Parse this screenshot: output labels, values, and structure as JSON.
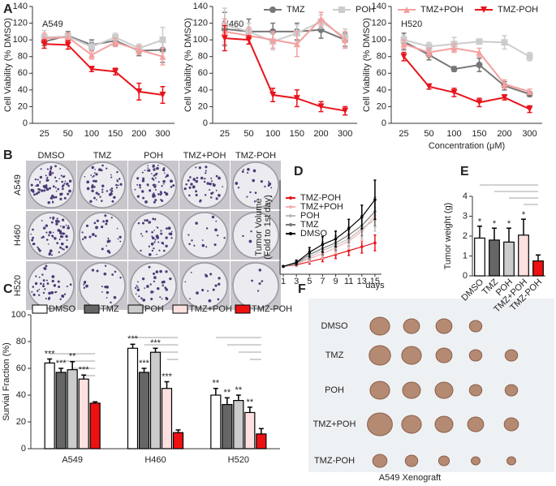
{
  "panel_labels": [
    "A",
    "B",
    "C",
    "D",
    "E",
    "F"
  ],
  "colony_assay": {
    "columns": [
      "DMSO",
      "TMZ",
      "POH",
      "TMZ+POH",
      "TMZ-POH"
    ],
    "rows": [
      "A549",
      "H460",
      "H520"
    ]
  },
  "xenograft": {
    "rows": [
      "DMSO",
      "TMZ",
      "POH",
      "TMZ+POH",
      "TMZ-POH"
    ],
    "caption": "A549 Xenograft"
  },
  "chart_data": [
    {
      "type": "line",
      "title": "A549",
      "ylabel": "Cell Viability (% DMSO)",
      "legend": "top",
      "categories": [
        "25",
        "50",
        "100",
        "150",
        "200",
        "300"
      ],
      "ylim": [
        0,
        140
      ],
      "yticks": [
        0,
        20,
        40,
        60,
        80,
        100,
        120,
        140
      ],
      "series": [
        {
          "name": "TMZ",
          "color": "#777777",
          "marker": "circle",
          "values": [
            98,
            105,
            94,
            99,
            87,
            88
          ],
          "errors": [
            5,
            5,
            6,
            6,
            6,
            15
          ]
        },
        {
          "name": "POH",
          "color": "#cccccc",
          "marker": "square",
          "values": [
            103,
            104,
            92,
            103,
            90,
            100
          ],
          "errors": [
            8,
            4,
            6,
            5,
            5,
            15
          ]
        },
        {
          "name": "TMZ+POH",
          "color": "#f4a0a0",
          "marker": "triangle-up",
          "values": [
            102,
            103,
            82,
            97,
            88,
            80
          ],
          "errors": [
            6,
            5,
            5,
            5,
            5,
            10
          ]
        },
        {
          "name": "TMZ-POH",
          "color": "#e8141c",
          "marker": "triangle-down",
          "values": [
            95,
            94,
            65,
            62,
            38,
            34
          ],
          "errors": [
            5,
            5,
            3,
            4,
            10,
            10
          ]
        }
      ]
    },
    {
      "type": "line",
      "title": "H460",
      "ylabel": "Cell Viability (% DMSO)",
      "categories": [
        "25",
        "50",
        "100",
        "150",
        "200",
        "300"
      ],
      "ylim": [
        0,
        140
      ],
      "yticks": [
        0,
        20,
        40,
        60,
        80,
        100,
        120,
        140
      ],
      "series": [
        {
          "color": "#777777",
          "marker": "circle",
          "values": [
            113,
            110,
            110,
            110,
            112,
            100
          ],
          "errors": [
            20,
            15,
            10,
            10,
            10,
            8
          ]
        },
        {
          "color": "#cccccc",
          "marker": "square",
          "values": [
            118,
            110,
            98,
            108,
            122,
            103
          ],
          "errors": [
            20,
            10,
            10,
            10,
            8,
            10
          ]
        },
        {
          "color": "#f4a0a0",
          "marker": "triangle-up",
          "values": [
            110,
            105,
            100,
            95,
            125,
            100
          ],
          "errors": [
            15,
            10,
            10,
            15,
            8,
            10
          ]
        },
        {
          "color": "#e8141c",
          "marker": "triangle-down",
          "values": [
            102,
            100,
            34,
            30,
            20,
            15
          ],
          "errors": [
            15,
            5,
            8,
            10,
            6,
            5
          ]
        }
      ]
    },
    {
      "type": "line",
      "title": "H520",
      "ylabel": "Cell Viability (% DMSO)",
      "xlabel": "Concentration (μM)",
      "categories": [
        "25",
        "50",
        "100",
        "150",
        "200",
        "300"
      ],
      "ylim": [
        0,
        140
      ],
      "yticks": [
        0,
        20,
        40,
        60,
        80,
        100,
        120,
        140
      ],
      "series": [
        {
          "color": "#777777",
          "marker": "circle",
          "values": [
            98,
            82,
            65,
            70,
            45,
            35
          ],
          "errors": [
            10,
            6,
            3,
            8,
            5,
            3
          ]
        },
        {
          "color": "#cccccc",
          "marker": "square",
          "values": [
            100,
            92,
            95,
            98,
            97,
            80
          ],
          "errors": [
            5,
            5,
            8,
            3,
            8,
            5
          ]
        },
        {
          "color": "#f4a0a0",
          "marker": "triangle-up",
          "values": [
            95,
            85,
            90,
            85,
            47,
            38
          ],
          "errors": [
            5,
            5,
            5,
            5,
            5,
            3
          ]
        },
        {
          "color": "#e8141c",
          "marker": "triangle-down",
          "values": [
            80,
            44,
            37,
            25,
            31,
            17
          ],
          "errors": [
            5,
            3,
            5,
            5,
            3,
            4
          ]
        }
      ]
    },
    {
      "type": "bar",
      "ylabel": "Survial Fraction (%)",
      "legend": "top",
      "categories": [
        "A549",
        "H460",
        "H520"
      ],
      "ylim": [
        0,
        100
      ],
      "yticks": [
        0,
        20,
        40,
        60,
        80,
        100
      ],
      "series": [
        {
          "name": "DMSO",
          "color": "#ffffff",
          "values": [
            64,
            75,
            40
          ],
          "errors": [
            3,
            3,
            5
          ],
          "annotations": [
            "***",
            "***",
            "**"
          ]
        },
        {
          "name": "TMZ",
          "color": "#666666",
          "values": [
            57,
            57,
            33
          ],
          "errors": [
            3,
            3,
            5
          ],
          "annotations": [
            "***",
            "***",
            "**"
          ]
        },
        {
          "name": "POH",
          "color": "#cccccc",
          "values": [
            59,
            72,
            36
          ],
          "errors": [
            6,
            3,
            4
          ],
          "annotations": [
            "**",
            "***",
            "**"
          ]
        },
        {
          "name": "TMZ+POH",
          "color": "#fde0e0",
          "values": [
            52,
            45,
            27
          ],
          "errors": [
            3,
            5,
            4
          ],
          "annotations": [
            "***",
            "***",
            "**"
          ]
        },
        {
          "name": "TMZ-POH",
          "color": "#ee1111",
          "values": [
            34,
            12,
            11
          ],
          "errors": [
            1,
            2,
            4
          ]
        }
      ]
    },
    {
      "type": "line",
      "ylabel": [
        "Tumor Volume",
        "(Fold to 1st day)"
      ],
      "xlabel": "days",
      "legend": "upper left",
      "x": [
        1,
        3,
        5,
        7,
        9,
        11,
        13,
        15
      ],
      "xlim": [
        0.5,
        16
      ],
      "xticks": [
        1,
        3,
        5,
        7,
        9,
        11,
        13,
        15
      ],
      "ylim": [
        0,
        12
      ],
      "series": [
        {
          "name": "TMZ-POH",
          "color": "#e8141c",
          "marker": "circle",
          "values": [
            1,
            1.2,
            1.6,
            2.0,
            2.5,
            3.0,
            3.5,
            4.0
          ],
          "errors": [
            0,
            0.2,
            0.3,
            0.4,
            0.5,
            0.6,
            0.8,
            1.0
          ]
        },
        {
          "name": "TMZ+POH",
          "color": "#f4b0b0",
          "marker": "circle",
          "values": [
            1,
            1.3,
            2.0,
            2.6,
            3.4,
            4.2,
            5.5,
            7.5
          ],
          "errors": [
            0,
            0.3,
            0.5,
            0.6,
            0.8,
            1.0,
            1.2,
            1.5
          ]
        },
        {
          "name": "POH",
          "color": "#bbbbbb",
          "marker": "circle",
          "values": [
            1,
            1.3,
            2.2,
            3.0,
            3.7,
            4.5,
            5.8,
            7.0
          ],
          "errors": [
            0,
            0.3,
            0.5,
            0.7,
            0.8,
            1.0,
            1.2,
            1.5
          ]
        },
        {
          "name": "TMZ",
          "color": "#777777",
          "marker": "circle",
          "values": [
            1,
            1.4,
            2.5,
            3.3,
            4.0,
            5.0,
            6.2,
            8.0
          ],
          "errors": [
            0,
            0.3,
            0.6,
            0.8,
            0.9,
            1.0,
            1.3,
            1.8
          ]
        },
        {
          "name": "DMSO",
          "color": "#000000",
          "marker": "circle",
          "values": [
            1,
            1.5,
            2.8,
            3.8,
            4.5,
            5.8,
            7.3,
            9.5
          ],
          "errors": [
            0,
            0.3,
            0.6,
            1.0,
            1.0,
            1.2,
            1.5,
            2.5
          ]
        }
      ]
    },
    {
      "type": "bar",
      "ylabel": "Tumor weight (g)",
      "categories": [
        "DMSO",
        "TMZ",
        "POH",
        "TMZ+POH",
        "TMZ-POH"
      ],
      "ylim": [
        0,
        4
      ],
      "yticks": [
        0,
        1,
        2,
        3,
        4
      ],
      "values": [
        1.9,
        1.8,
        1.7,
        2.05,
        0.75
      ],
      "errors": [
        0.6,
        0.6,
        0.7,
        0.8,
        0.3
      ],
      "colors": [
        "#ffffff",
        "#666666",
        "#cccccc",
        "#fde0e0",
        "#ee1111"
      ],
      "annotations": [
        "*",
        "*",
        "*",
        "*",
        null
      ]
    }
  ]
}
